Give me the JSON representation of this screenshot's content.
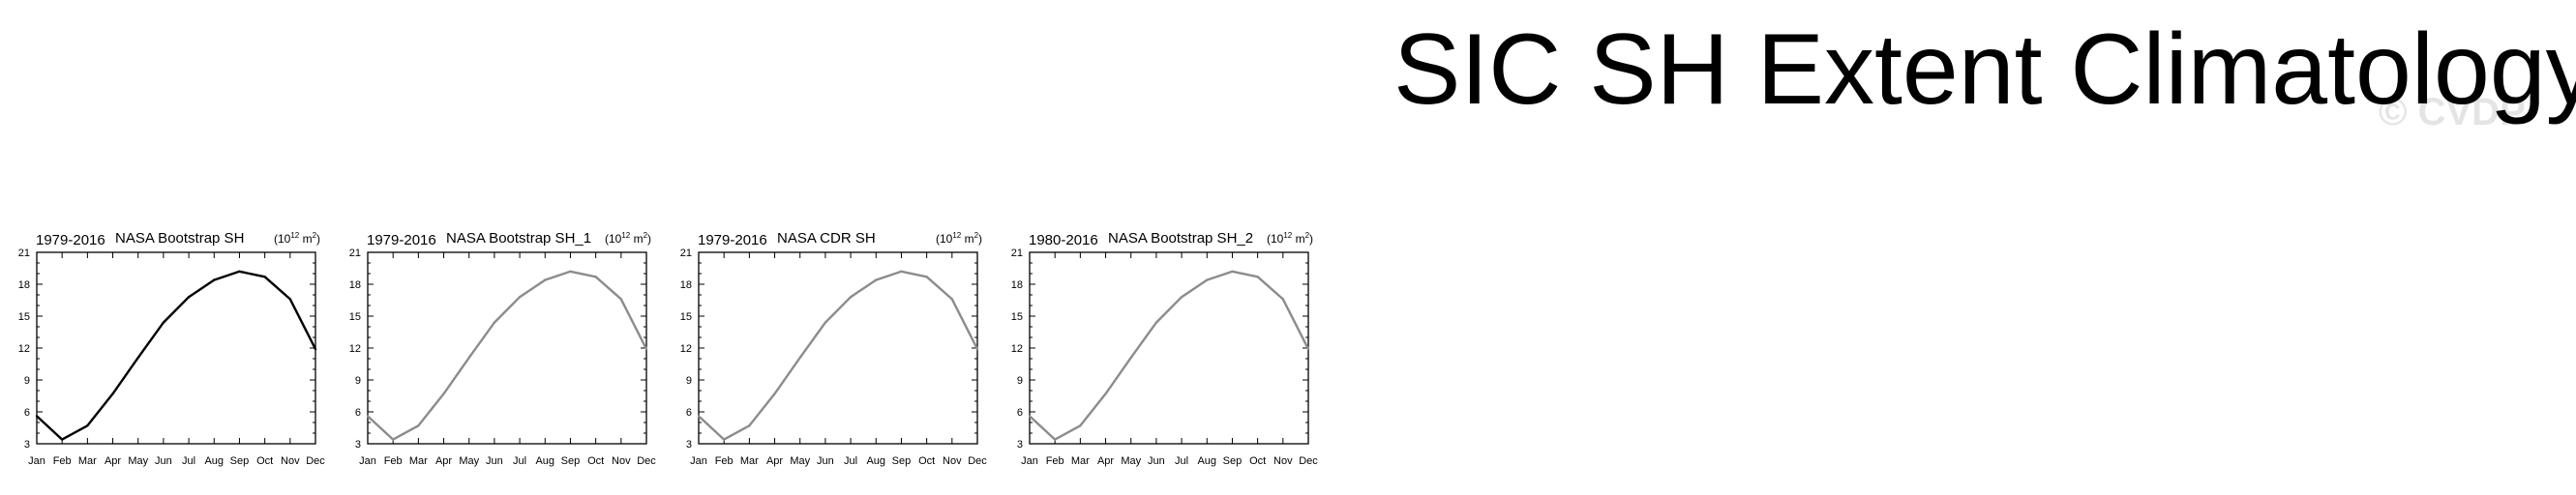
{
  "page": {
    "title": "SIC SH Extent Climatology",
    "watermark": "© CVDP"
  },
  "colors": {
    "primary_line": "#000000",
    "secondary_line": "#8c8c8c",
    "axis": "#000000",
    "text": "#000000"
  },
  "chart_data": [
    {
      "type": "line",
      "left_label": "1979-2016",
      "center_label": "NASA Bootstrap SH",
      "units": {
        "base": "(10",
        "exp": "12",
        "mid": " m",
        "sq": "2",
        "end": ")"
      },
      "x": [
        "Jan",
        "Feb",
        "Mar",
        "Apr",
        "May",
        "Jun",
        "Jul",
        "Aug",
        "Sep",
        "Oct",
        "Nov",
        "Dec"
      ],
      "y": [
        5.6,
        3.4,
        4.7,
        7.7,
        11.1,
        14.4,
        16.8,
        18.4,
        19.2,
        18.7,
        16.6,
        11.9
      ],
      "ylim": [
        3,
        21
      ],
      "yticks": [
        3,
        6,
        9,
        12,
        15,
        18,
        21
      ],
      "line_color": "#000000"
    },
    {
      "type": "line",
      "left_label": "1979-2016",
      "center_label": "NASA Bootstrap SH_1",
      "units": {
        "base": "(10",
        "exp": "12",
        "mid": " m",
        "sq": "2",
        "end": ")"
      },
      "x": [
        "Jan",
        "Feb",
        "Mar",
        "Apr",
        "May",
        "Jun",
        "Jul",
        "Aug",
        "Sep",
        "Oct",
        "Nov",
        "Dec"
      ],
      "y": [
        5.6,
        3.4,
        4.7,
        7.7,
        11.1,
        14.4,
        16.8,
        18.4,
        19.2,
        18.7,
        16.6,
        11.9
      ],
      "ylim": [
        3,
        21
      ],
      "yticks": [
        3,
        6,
        9,
        12,
        15,
        18,
        21
      ],
      "line_color": "#8c8c8c"
    },
    {
      "type": "line",
      "left_label": "1979-2016",
      "center_label": "NASA CDR SH",
      "units": {
        "base": "(10",
        "exp": "12",
        "mid": " m",
        "sq": "2",
        "end": ")"
      },
      "x": [
        "Jan",
        "Feb",
        "Mar",
        "Apr",
        "May",
        "Jun",
        "Jul",
        "Aug",
        "Sep",
        "Oct",
        "Nov",
        "Dec"
      ],
      "y": [
        5.6,
        3.4,
        4.7,
        7.7,
        11.1,
        14.4,
        16.8,
        18.4,
        19.2,
        18.7,
        16.6,
        11.9
      ],
      "ylim": [
        3,
        21
      ],
      "yticks": [
        3,
        6,
        9,
        12,
        15,
        18,
        21
      ],
      "line_color": "#8c8c8c"
    },
    {
      "type": "line",
      "left_label": "1980-2016",
      "center_label": "NASA Bootstrap SH_2",
      "units": {
        "base": "(10",
        "exp": "12",
        "mid": " m",
        "sq": "2",
        "end": ")"
      },
      "x": [
        "Jan",
        "Feb",
        "Mar",
        "Apr",
        "May",
        "Jun",
        "Jul",
        "Aug",
        "Sep",
        "Oct",
        "Nov",
        "Dec"
      ],
      "y": [
        5.6,
        3.4,
        4.7,
        7.7,
        11.1,
        14.4,
        16.8,
        18.4,
        19.2,
        18.7,
        16.6,
        11.9
      ],
      "ylim": [
        3,
        21
      ],
      "yticks": [
        3,
        6,
        9,
        12,
        15,
        18,
        21
      ],
      "line_color": "#8c8c8c"
    }
  ]
}
